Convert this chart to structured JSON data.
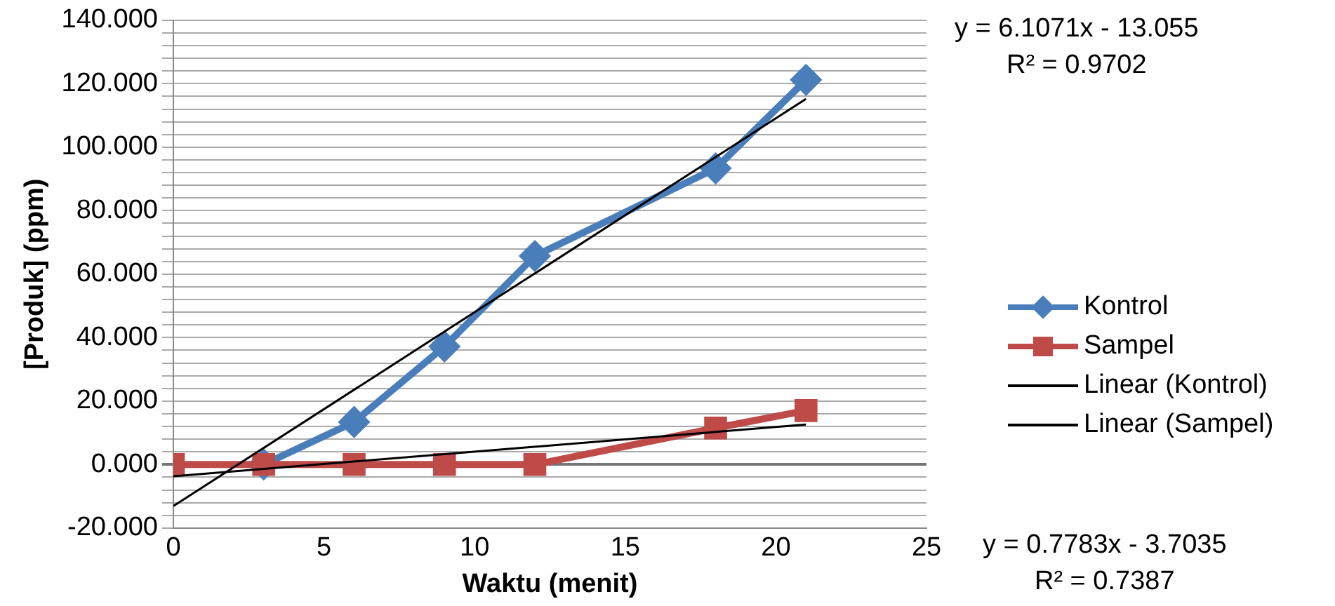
{
  "chart_data": {
    "type": "line",
    "xlabel": "Waktu (menit)",
    "ylabel": "[Produk] (ppm)",
    "xlim": [
      0,
      25
    ],
    "xticks": [
      0,
      5,
      10,
      15,
      20,
      25
    ],
    "ylim": [
      -20,
      140
    ],
    "yticks": [
      {
        "value": -20,
        "label": "-20.000"
      },
      {
        "value": -16,
        "label": null
      },
      {
        "value": -12,
        "label": null
      },
      {
        "value": -8,
        "label": null
      },
      {
        "value": -4,
        "label": null
      },
      {
        "value": 0,
        "label": "0.000"
      },
      {
        "value": 4,
        "label": null
      },
      {
        "value": 8,
        "label": null
      },
      {
        "value": 12,
        "label": null
      },
      {
        "value": 16,
        "label": null
      },
      {
        "value": 20,
        "label": "20.000"
      },
      {
        "value": 24,
        "label": null
      },
      {
        "value": 28,
        "label": null
      },
      {
        "value": 32,
        "label": null
      },
      {
        "value": 36,
        "label": null
      },
      {
        "value": 40,
        "label": "40.000"
      },
      {
        "value": 44,
        "label": null
      },
      {
        "value": 48,
        "label": null
      },
      {
        "value": 52,
        "label": null
      },
      {
        "value": 56,
        "label": null
      },
      {
        "value": 60,
        "label": "60.000"
      },
      {
        "value": 64,
        "label": null
      },
      {
        "value": 68,
        "label": null
      },
      {
        "value": 72,
        "label": null
      },
      {
        "value": 76,
        "label": null
      },
      {
        "value": 80,
        "label": "80.000"
      },
      {
        "value": 84,
        "label": null
      },
      {
        "value": 88,
        "label": null
      },
      {
        "value": 92,
        "label": null
      },
      {
        "value": 96,
        "label": null
      },
      {
        "value": 100,
        "label": "100.000"
      },
      {
        "value": 104,
        "label": null
      },
      {
        "value": 108,
        "label": null
      },
      {
        "value": 112,
        "label": null
      },
      {
        "value": 116,
        "label": null
      },
      {
        "value": 120,
        "label": "120.000"
      },
      {
        "value": 124,
        "label": null
      },
      {
        "value": 128,
        "label": null
      },
      {
        "value": 132,
        "label": null
      },
      {
        "value": 136,
        "label": null
      },
      {
        "value": 140,
        "label": "140.000"
      }
    ],
    "grid": "y",
    "legend": "right",
    "series": [
      {
        "name": "Kontrol",
        "color": "#4a7ebb",
        "marker": "diamond",
        "x": [
          3,
          6,
          9,
          12,
          18,
          21
        ],
        "values": [
          0,
          13.4,
          37.2,
          65.7,
          93.3,
          121.2
        ]
      },
      {
        "name": "Sampel",
        "color": "#be4b48",
        "marker": "square",
        "x": [
          0,
          3,
          6,
          9,
          12,
          18,
          21
        ],
        "values": [
          0,
          0,
          0,
          0,
          0,
          11.5,
          17.0
        ]
      },
      {
        "name": "Linear (Kontrol)",
        "color": "#000000",
        "marker": "none",
        "x": [
          0,
          21
        ],
        "values": [
          -13.1,
          115.2
        ]
      },
      {
        "name": "Linear (Sampel)",
        "color": "#000000",
        "marker": "none",
        "x": [
          0,
          21
        ],
        "values": [
          -3.7,
          12.6
        ]
      }
    ],
    "annotations": [
      "y = 6.1071x - 13.055\nR² = 0.9702",
      "y = 0.7783x - 3.7035\nR² = 0.7387"
    ]
  }
}
